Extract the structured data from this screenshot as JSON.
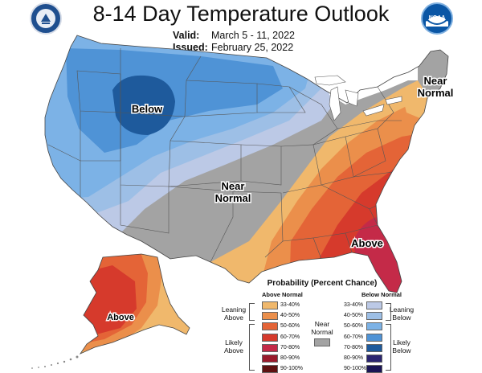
{
  "header": {
    "title": "8-14 Day Temperature Outlook",
    "valid_label": "Valid:",
    "valid_value": "March 5 - 11, 2022",
    "issued_label": "Issued:",
    "issued_value": "February 25, 2022"
  },
  "logos": {
    "left": "commerce-seal-icon",
    "right": "noaa-logo-icon"
  },
  "map_labels": {
    "below": "Below",
    "near_normal_1": "Near",
    "near_normal_2": "Normal",
    "ne_near_1": "Near",
    "ne_near_2": "Normal",
    "above_se": "Above",
    "above_ak": "Above"
  },
  "legend": {
    "title": "Probability (Percent Chance)",
    "above_header": "Above Normal",
    "below_header": "Below Normal",
    "near_label_1": "Near",
    "near_label_2": "Normal",
    "leaning_above_1": "Leaning",
    "leaning_above_2": "Above",
    "likely_above_1": "Likely",
    "likely_above_2": "Above",
    "leaning_below_1": "Leaning",
    "leaning_below_2": "Below",
    "likely_below_1": "Likely",
    "likely_below_2": "Below",
    "above": [
      {
        "range": "33-40%",
        "color": "#f0b86c"
      },
      {
        "range": "40-50%",
        "color": "#eb8f4b"
      },
      {
        "range": "50-60%",
        "color": "#e46437"
      },
      {
        "range": "60-70%",
        "color": "#d63a2c"
      },
      {
        "range": "70-80%",
        "color": "#c42a48"
      },
      {
        "range": "80-90%",
        "color": "#9a1a2c"
      },
      {
        "range": "90-100%",
        "color": "#5e1111"
      }
    ],
    "below": [
      {
        "range": "33-40%",
        "color": "#bcc9e6"
      },
      {
        "range": "40-50%",
        "color": "#9dbfe6"
      },
      {
        "range": "50-60%",
        "color": "#7cb2e6"
      },
      {
        "range": "60-70%",
        "color": "#4f93d6"
      },
      {
        "range": "70-80%",
        "color": "#1e5a9c"
      },
      {
        "range": "80-90%",
        "color": "#2a2570"
      },
      {
        "range": "90-100%",
        "color": "#1a1555"
      }
    ],
    "near_color": "#a3a3a3"
  }
}
